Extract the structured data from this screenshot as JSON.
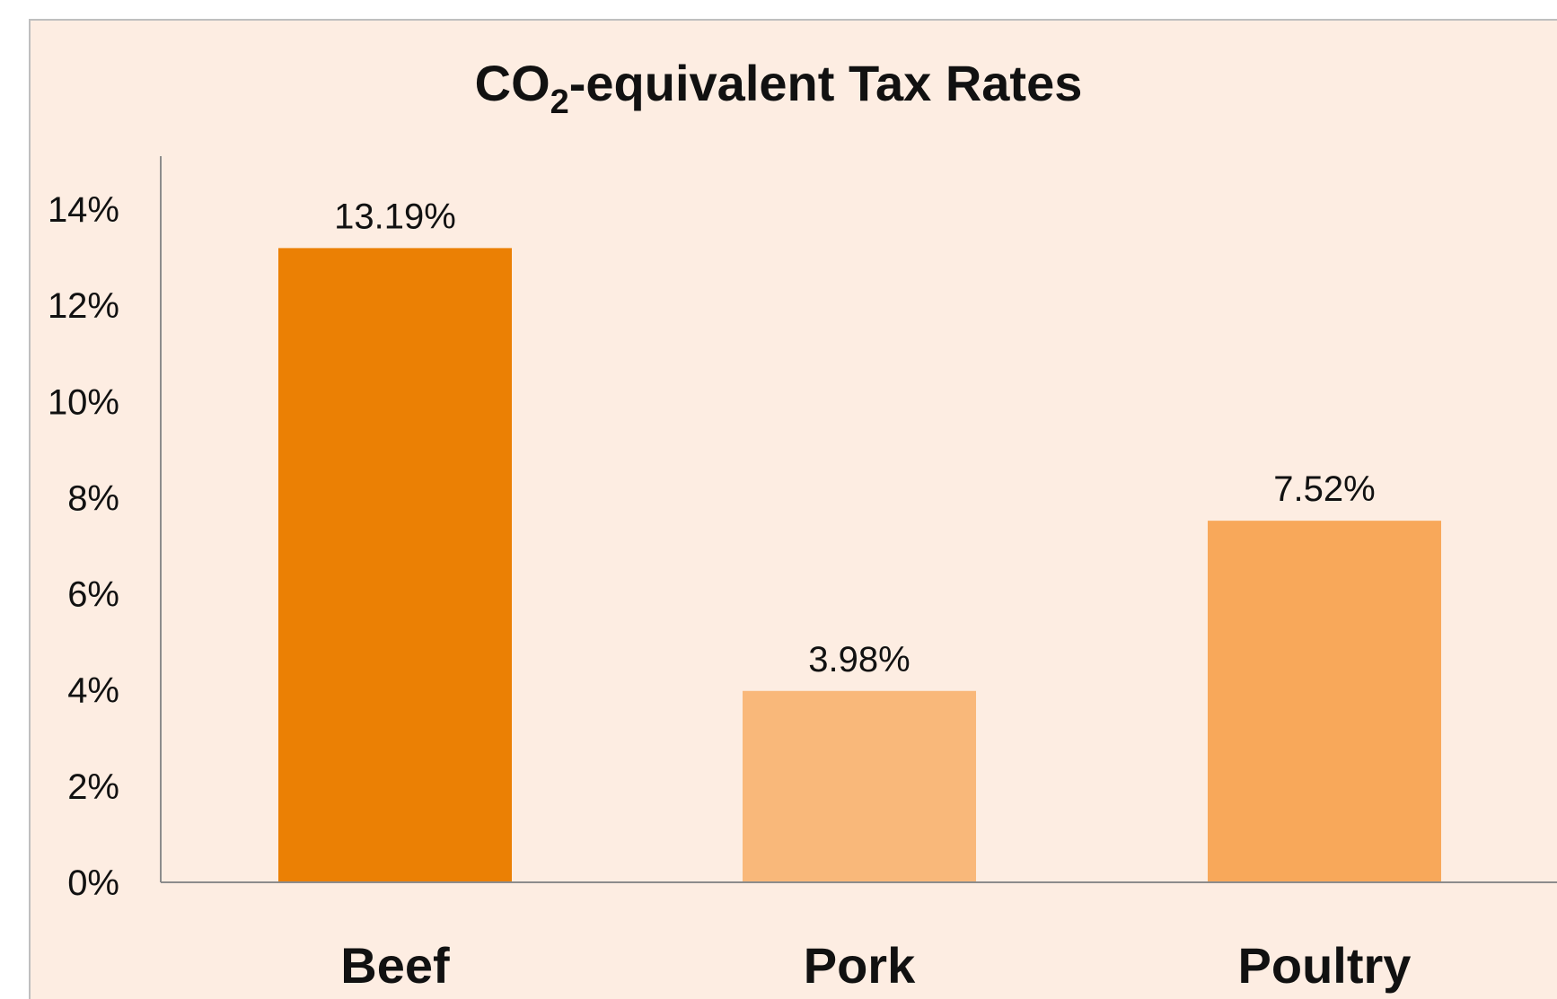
{
  "chart_data": {
    "type": "bar",
    "title": {
      "prefix": "CO",
      "subscript": "2",
      "suffix": "-equivalent Tax Rates"
    },
    "categories": [
      "Beef",
      "Pork",
      "Poultry"
    ],
    "values": [
      13.19,
      3.98,
      7.52
    ],
    "value_labels": [
      "13.19%",
      "3.98%",
      "7.52%"
    ],
    "bar_colors": [
      "#EB8004",
      "#F9B87A",
      "#F8A85A"
    ],
    "yticks": [
      "0%",
      "2%",
      "4%",
      "6%",
      "8%",
      "10%",
      "12%",
      "14%"
    ],
    "ylim": [
      0,
      14
    ],
    "xlabel": "",
    "ylabel": "",
    "grid": false,
    "legend": "none"
  },
  "colors": {
    "background": "#FDEDE2",
    "frame_border": "#BFBFBF",
    "axis": "#8C8C8C",
    "text": "#111111"
  }
}
